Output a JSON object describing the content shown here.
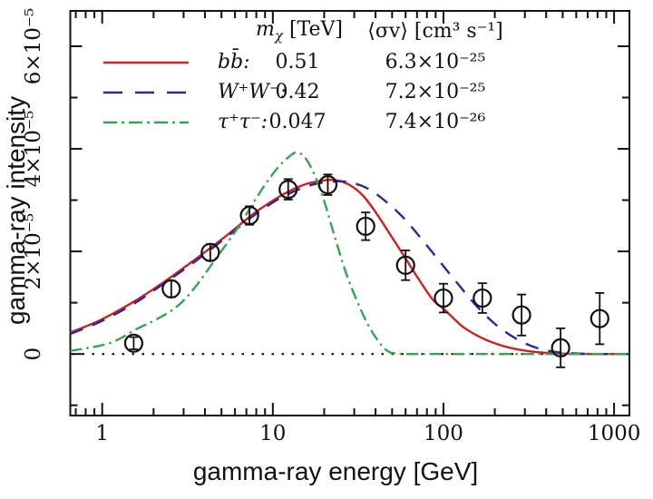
{
  "figure": {
    "xlabel": "gamma-ray energy [GeV]",
    "ylabel": "gamma-ray intensity",
    "background": "#ffffff",
    "axis_color": "#111111"
  },
  "legend": {
    "header": {
      "mass_pre": "m",
      "mass_sub": "χ",
      "mass_post": " [TeV]",
      "sigma": "⟨σv⟩ [cm³ s⁻¹]"
    },
    "rows": [
      {
        "label": "bb̄:",
        "mass": "0.51",
        "sigma": "6.3×10⁻²⁵"
      },
      {
        "label": "W⁺W⁻:",
        "mass": "0.42",
        "sigma": "7.2×10⁻²⁵"
      },
      {
        "label": "τ⁺τ⁻:",
        "mass": "0.047",
        "sigma": "7.4×10⁻²⁶"
      }
    ]
  },
  "chart_data": {
    "type": "line",
    "xlabel": "gamma-ray energy [GeV]",
    "ylabel": "gamma-ray intensity",
    "x_scale": "log",
    "y_units": "10^-5",
    "xlim": [
      0.65,
      1230
    ],
    "ylim": [
      -1.2,
      6.69
    ],
    "grid": false,
    "legend_position": "top-left",
    "x_ticks": {
      "major": [
        1,
        10,
        100,
        1000
      ],
      "labels": [
        "1",
        "10",
        "100",
        "1000"
      ],
      "minor": [
        0.7,
        0.8,
        0.9,
        2,
        3,
        4,
        5,
        6,
        7,
        8,
        9,
        20,
        30,
        40,
        50,
        60,
        70,
        80,
        90,
        200,
        300,
        400,
        500,
        600,
        700,
        800,
        900
      ]
    },
    "y_ticks": {
      "major": [
        0,
        2,
        4,
        6
      ],
      "labels": [
        "0",
        "2×10⁻⁵",
        "4×10⁻⁵",
        "6×10⁻⁵"
      ],
      "minor": [
        -1,
        1,
        3,
        5
      ]
    },
    "zero_line": true,
    "series": [
      {
        "name": "bbbar",
        "channel": "bb̄:",
        "mass_TeV": 0.51,
        "sigmav": "6.3×10⁻²⁵",
        "color": "#cb2323",
        "dash": "none",
        "legend_dash": "none",
        "points": [
          [
            0.65,
            0.42
          ],
          [
            0.96,
            0.65
          ],
          [
            1.48,
            0.99
          ],
          [
            2.27,
            1.39
          ],
          [
            3.49,
            1.84
          ],
          [
            5.36,
            2.31
          ],
          [
            7.74,
            2.74
          ],
          [
            11.2,
            3.09
          ],
          [
            15.2,
            3.3
          ],
          [
            19.4,
            3.38
          ],
          [
            23.3,
            3.39
          ],
          [
            28.0,
            3.3
          ],
          [
            33.7,
            3.09
          ],
          [
            40.5,
            2.74
          ],
          [
            48.7,
            2.33
          ],
          [
            58.5,
            1.92
          ],
          [
            70.3,
            1.5
          ],
          [
            86.5,
            1.06
          ],
          [
            101,
            0.87
          ],
          [
            130,
            0.53
          ],
          [
            166,
            0.32
          ],
          [
            212,
            0.18
          ],
          [
            271,
            0.09
          ],
          [
            346,
            0.04
          ],
          [
            469,
            0.01
          ],
          [
            720,
            0
          ],
          [
            950,
            0
          ],
          [
            1230,
            0
          ]
        ]
      },
      {
        "name": "WW",
        "channel": "W⁺W⁻:",
        "mass_TeV": 0.42,
        "sigmav": "7.2×10⁻²⁵",
        "color": "#2a2a92",
        "dash": "15 11",
        "legend_dash": "21 14",
        "points": [
          [
            0.65,
            0.39
          ],
          [
            0.96,
            0.62
          ],
          [
            1.48,
            0.95
          ],
          [
            2.27,
            1.36
          ],
          [
            3.49,
            1.8
          ],
          [
            5.36,
            2.28
          ],
          [
            7.74,
            2.7
          ],
          [
            11.2,
            3.05
          ],
          [
            16.2,
            3.28
          ],
          [
            21.9,
            3.36
          ],
          [
            28.0,
            3.35
          ],
          [
            35.8,
            3.23
          ],
          [
            45.7,
            2.98
          ],
          [
            58.5,
            2.65
          ],
          [
            74.5,
            2.24
          ],
          [
            95.3,
            1.8
          ],
          [
            122,
            1.36
          ],
          [
            155,
            0.95
          ],
          [
            198,
            0.6
          ],
          [
            254,
            0.34
          ],
          [
            325,
            0.16
          ],
          [
            416,
            0.06
          ],
          [
            532,
            0.02
          ],
          [
            767,
            0
          ],
          [
            1000,
            0
          ],
          [
            1230,
            0
          ]
        ]
      },
      {
        "name": "tautau",
        "channel": "τ⁺τ⁻:",
        "mass_TeV": 0.047,
        "sigmav": "7.4×10⁻²⁶",
        "color": "#3aa352",
        "dash": "13 5 2.5 5",
        "legend_dash": "15 5 3 5",
        "points": [
          [
            0.65,
            0.06
          ],
          [
            1.1,
            0.21
          ],
          [
            1.6,
            0.49
          ],
          [
            2.2,
            0.72
          ],
          [
            2.8,
            0.95
          ],
          [
            3.5,
            1.3
          ],
          [
            4.5,
            1.8
          ],
          [
            5.5,
            2.2
          ],
          [
            6.5,
            2.55
          ],
          [
            7.7,
            2.95
          ],
          [
            9.0,
            3.3
          ],
          [
            10.5,
            3.6
          ],
          [
            12.0,
            3.8
          ],
          [
            13.7,
            3.93
          ],
          [
            15.5,
            3.82
          ],
          [
            17.5,
            3.5
          ],
          [
            20,
            2.98
          ],
          [
            23,
            2.3
          ],
          [
            26.6,
            1.62
          ],
          [
            31,
            1.05
          ],
          [
            36,
            0.58
          ],
          [
            41.5,
            0.25
          ],
          [
            46.5,
            0.07
          ],
          [
            52,
            0.01
          ],
          [
            65,
            0
          ],
          [
            150,
            0
          ],
          [
            400,
            0
          ],
          [
            800,
            0
          ],
          [
            1230,
            0
          ]
        ]
      }
    ],
    "data_points": {
      "name": "observed",
      "symbol": "open-circle",
      "color": "#111111",
      "columns": [
        "energy_GeV",
        "intensity_1e-5",
        "error_1e-5"
      ],
      "points": [
        [
          1.53,
          0.21,
          0.12
        ],
        [
          2.54,
          1.27,
          0.16
        ],
        [
          4.3,
          1.98,
          0.16
        ],
        [
          7.3,
          2.7,
          0.18
        ],
        [
          12.3,
          3.21,
          0.2
        ],
        [
          21.0,
          3.3,
          0.2
        ],
        [
          35.0,
          2.49,
          0.27
        ],
        [
          60.0,
          1.73,
          0.29
        ],
        [
          100,
          1.09,
          0.28
        ],
        [
          169,
          1.09,
          0.29
        ],
        [
          287,
          0.76,
          0.4
        ],
        [
          486,
          0.12,
          0.38
        ],
        [
          824,
          0.69,
          0.5
        ]
      ]
    }
  }
}
